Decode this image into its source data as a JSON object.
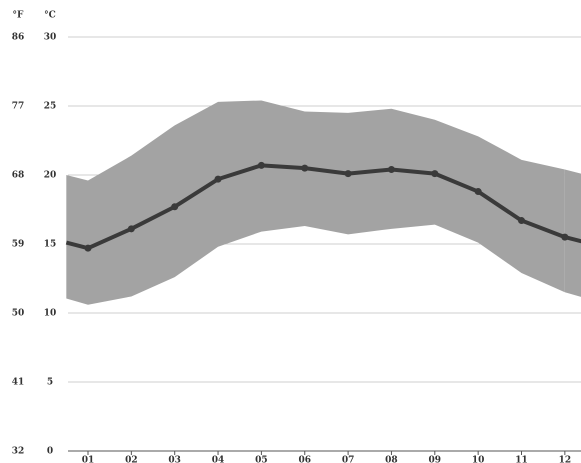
{
  "chart_data": {
    "type": "line",
    "y_title": "°C",
    "y2_title": "°F",
    "categories": [
      "01",
      "02",
      "03",
      "04",
      "05",
      "06",
      "07",
      "08",
      "09",
      "10",
      "11",
      "12"
    ],
    "band": {
      "color": "#a3a3a3",
      "low": [
        10.6,
        11.2,
        12.6,
        14.8,
        15.9,
        16.3,
        15.7,
        16.1,
        16.4,
        15.1,
        12.9,
        11.5
      ],
      "high": [
        19.6,
        21.4,
        23.6,
        25.3,
        25.4,
        24.6,
        24.5,
        24.8,
        24.0,
        22.8,
        21.1,
        20.4
      ]
    },
    "series": [
      {
        "color": "#3a3a3a",
        "values": [
          14.7,
          16.1,
          17.7,
          19.7,
          20.7,
          20.5,
          20.1,
          20.4,
          20.1,
          18.8,
          16.7,
          15.5
        ]
      }
    ],
    "ylim": [
      0,
      30
    ],
    "yticks": [
      0,
      5,
      10,
      15,
      20,
      25,
      30
    ],
    "y2lim": [
      32,
      86
    ],
    "y2ticks": [
      32,
      41,
      50,
      59,
      68,
      77,
      86
    ],
    "grid": true
  }
}
